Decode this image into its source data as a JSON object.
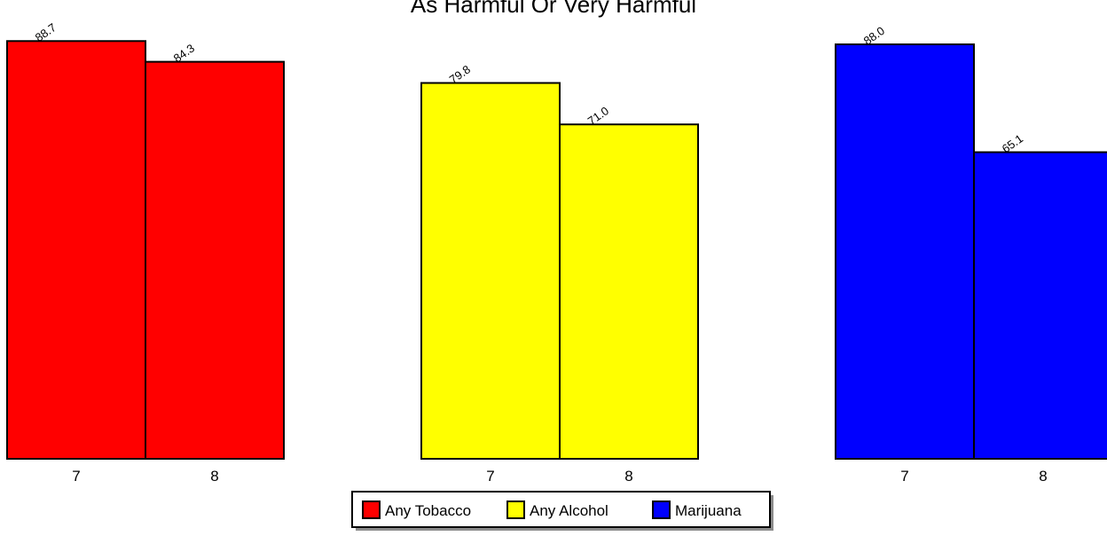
{
  "chart_data": {
    "type": "bar",
    "title": "As Harmful Or Very Harmful",
    "xlabel": "",
    "ylabel": "",
    "ylim": [
      0,
      90
    ],
    "grid": false,
    "legend_position": "bottom-center",
    "groups": [
      {
        "name": "Any Tobacco",
        "color": "#ff0000",
        "categories": [
          "7",
          "8"
        ],
        "values": [
          88.7,
          84.3
        ],
        "labels": [
          "88.7",
          "84.3"
        ]
      },
      {
        "name": "Any Alcohol",
        "color": "#ffff00",
        "categories": [
          "7",
          "8"
        ],
        "values": [
          79.8,
          71.0
        ],
        "labels": [
          "79.8",
          "71.0"
        ]
      },
      {
        "name": "Marijuana",
        "color": "#0000ff",
        "categories": [
          "7",
          "8"
        ],
        "values": [
          88.0,
          65.1
        ],
        "labels": [
          "88.0",
          "65.1"
        ]
      }
    ],
    "legend": [
      "Any Tobacco",
      "Any Alcohol",
      "Marijuana"
    ]
  }
}
